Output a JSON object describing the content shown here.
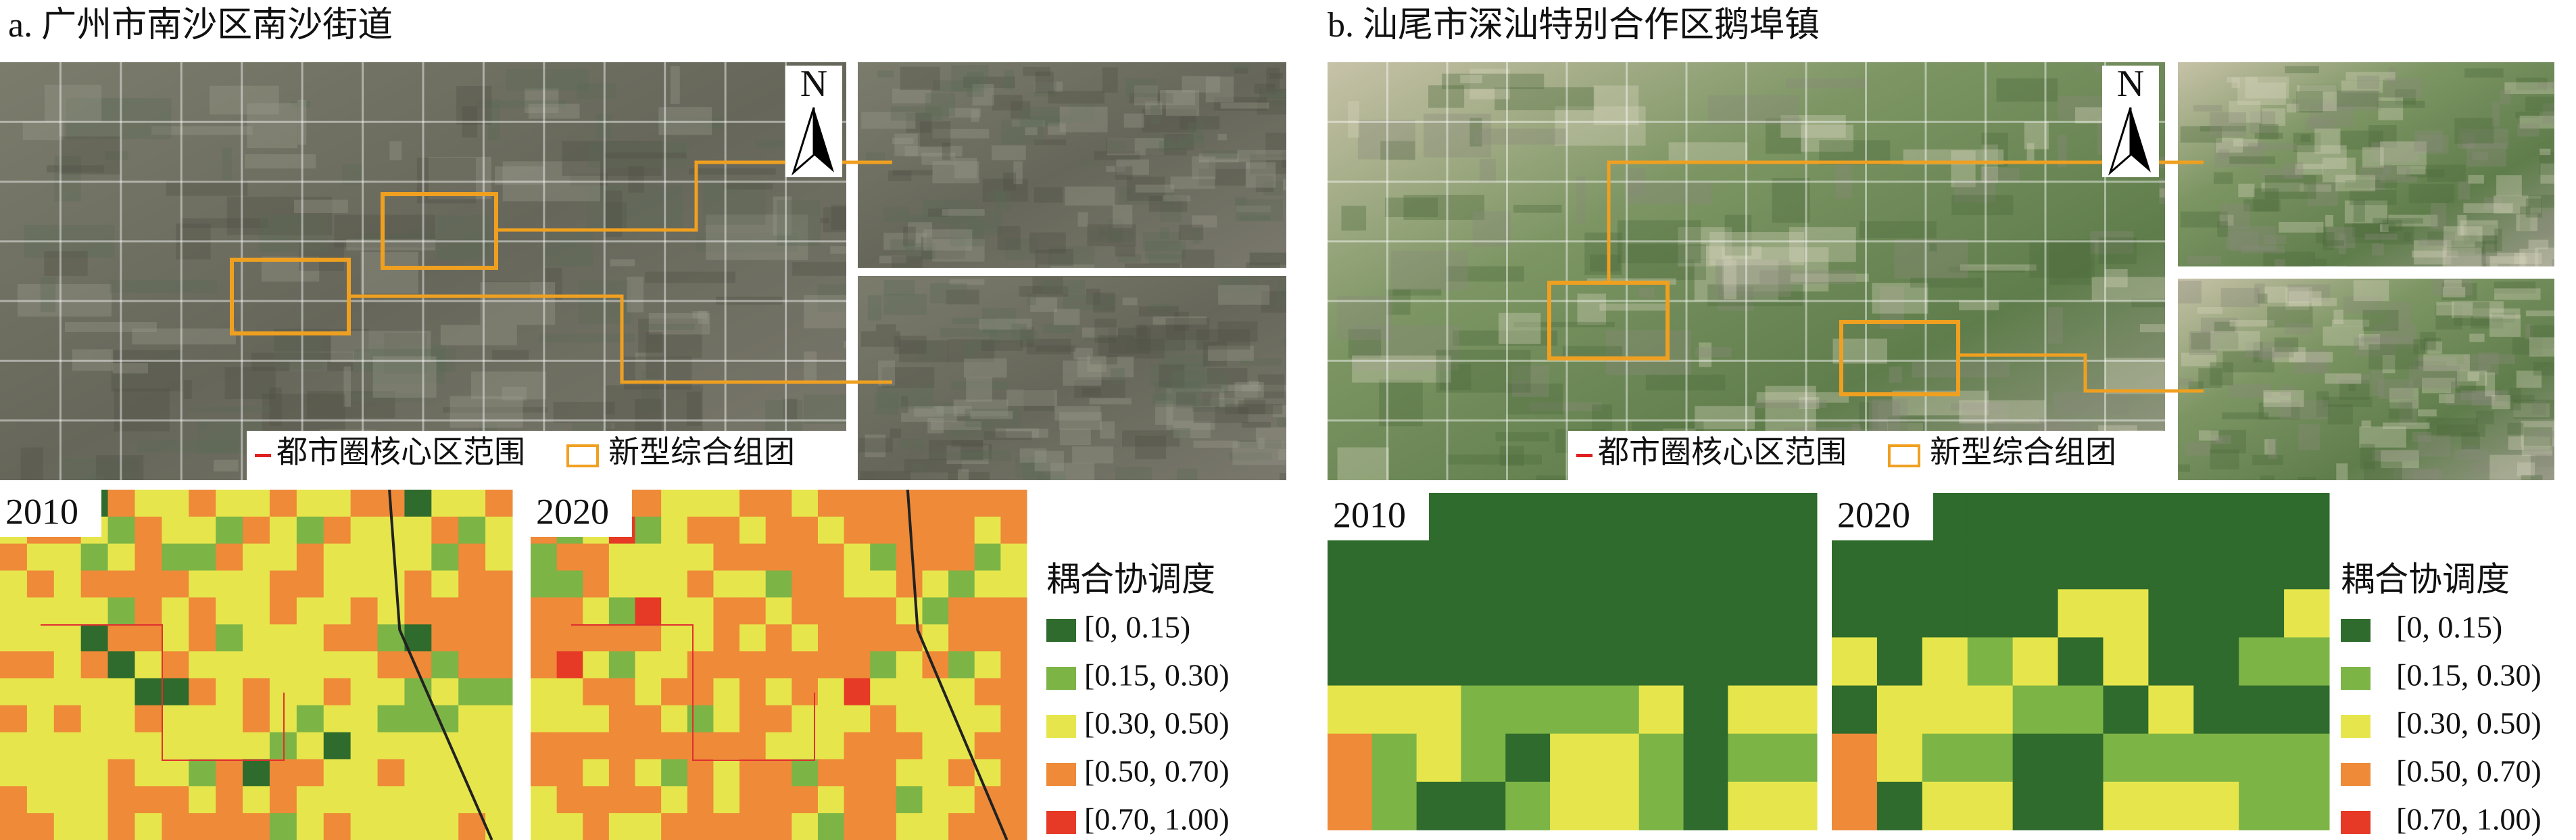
{
  "panels": [
    {
      "title": "a. 广州市南沙区南沙街道",
      "north": "N",
      "map_legend": {
        "boundary": "都市圈核心区范围",
        "cluster": "新型综合组团"
      },
      "maps": [
        {
          "year": "2010"
        },
        {
          "year": "2020"
        }
      ],
      "legend": {
        "title": "耦合协调度",
        "items": [
          {
            "label": "[0, 0.15)",
            "color": "#2f6b2c"
          },
          {
            "label": "[0.15, 0.30)",
            "color": "#7db446"
          },
          {
            "label": "[0.30, 0.50)",
            "color": "#e6e64c"
          },
          {
            "label": "[0.50, 0.70)",
            "color": "#ee8a38"
          },
          {
            "label": "[0.70, 1.00)",
            "color": "#e63a26"
          }
        ]
      }
    },
    {
      "title": "b. 汕尾市深汕特别合作区鹅埠镇",
      "north": "N",
      "map_legend": {
        "boundary": "都市圈核心区范围",
        "cluster": "新型综合组团"
      },
      "maps": [
        {
          "year": "2010"
        },
        {
          "year": "2020"
        }
      ],
      "legend": {
        "title": "耦合协调度",
        "items": [
          {
            "label": "[0, 0.15)",
            "color": "#2f6b2c"
          },
          {
            "label": "[0.15, 0.30)",
            "color": "#7db446"
          },
          {
            "label": "[0.30, 0.50)",
            "color": "#e6e64c"
          },
          {
            "label": "[0.50, 0.70)",
            "color": "#ee8a38"
          },
          {
            "label": "[0.70, 1.00)",
            "color": "#e63a26"
          }
        ]
      }
    }
  ]
}
